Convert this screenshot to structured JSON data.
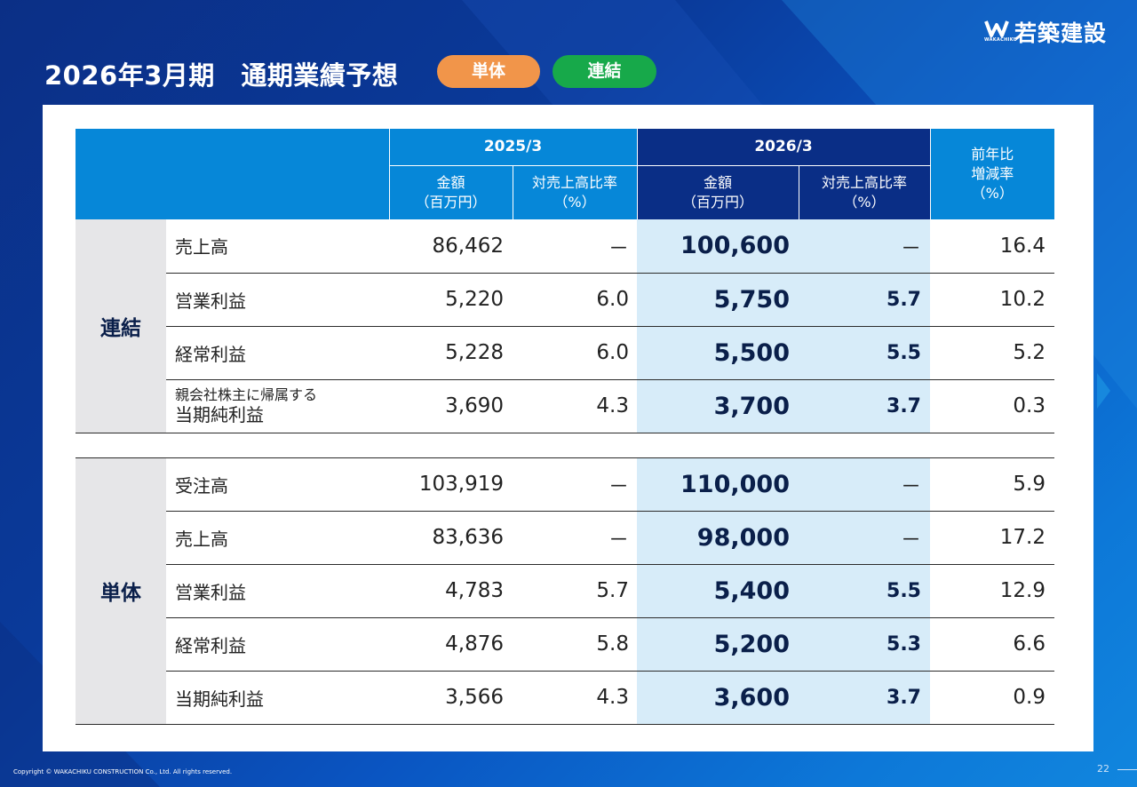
{
  "header": {
    "title": "2026年3月期　通期業績予想",
    "pill_tantai": "単体",
    "pill_renketsu": "連結"
  },
  "logo": {
    "text": "若築建設",
    "sub": "WAKACHIKU"
  },
  "table": {
    "period_prev": "2025/3",
    "period_cur": "2026/3",
    "yoy_header": [
      "前年比",
      "増減率",
      "（%）"
    ],
    "amount_header": [
      "金額",
      "（百万円）"
    ],
    "ratio_header": [
      "対売上高比率",
      "（%）"
    ],
    "groups": [
      {
        "label": "連結",
        "rows": [
          {
            "item": "売上高",
            "prev_amount": "86,462",
            "prev_ratio": "－",
            "cur_amount": "100,600",
            "cur_ratio": "－",
            "yoy": "16.4"
          },
          {
            "item": "営業利益",
            "prev_amount": "5,220",
            "prev_ratio": "6.0",
            "cur_amount": "5,750",
            "cur_ratio": "5.7",
            "yoy": "10.2"
          },
          {
            "item": "経常利益",
            "prev_amount": "5,228",
            "prev_ratio": "6.0",
            "cur_amount": "5,500",
            "cur_ratio": "5.5",
            "yoy": "5.2"
          },
          {
            "item_small": "親会社株主に帰属する",
            "item": "当期純利益",
            "prev_amount": "3,690",
            "prev_ratio": "4.3",
            "cur_amount": "3,700",
            "cur_ratio": "3.7",
            "yoy": "0.3"
          }
        ]
      },
      {
        "label": "単体",
        "rows": [
          {
            "item": "受注高",
            "prev_amount": "103,919",
            "prev_ratio": "－",
            "cur_amount": "110,000",
            "cur_ratio": "－",
            "yoy": "5.9"
          },
          {
            "item": "売上高",
            "prev_amount": "83,636",
            "prev_ratio": "－",
            "cur_amount": "98,000",
            "cur_ratio": "－",
            "yoy": "17.2"
          },
          {
            "item": "営業利益",
            "prev_amount": "4,783",
            "prev_ratio": "5.7",
            "cur_amount": "5,400",
            "cur_ratio": "5.5",
            "yoy": "12.9"
          },
          {
            "item": "経常利益",
            "prev_amount": "4,876",
            "prev_ratio": "5.8",
            "cur_amount": "5,200",
            "cur_ratio": "5.3",
            "yoy": "6.6"
          },
          {
            "item": "当期純利益",
            "prev_amount": "3,566",
            "prev_ratio": "4.3",
            "cur_amount": "3,600",
            "cur_ratio": "3.7",
            "yoy": "0.9"
          }
        ]
      }
    ]
  },
  "footer": {
    "copyright": "Copyright © WAKACHIKU CONSTRUCTION Co., Ltd. All rights reserved.",
    "page": "22"
  }
}
